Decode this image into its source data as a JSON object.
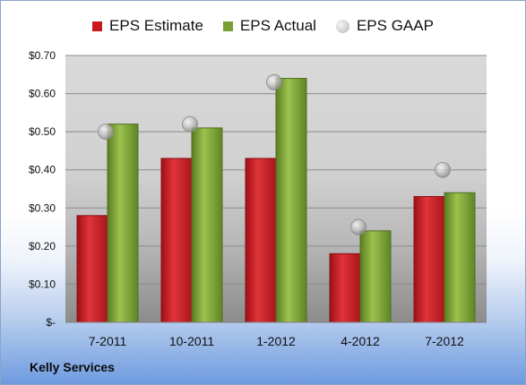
{
  "company_label": "Kelly Services",
  "chart_data": {
    "type": "bar",
    "categories": [
      "7-2011",
      "10-2011",
      "1-2012",
      "4-2012",
      "7-2012"
    ],
    "series": [
      {
        "name": "EPS Estimate",
        "kind": "bar",
        "color": "#c8191f",
        "values": [
          0.28,
          0.43,
          0.43,
          0.18,
          0.33
        ]
      },
      {
        "name": "EPS Actual",
        "kind": "bar",
        "color": "#78a032",
        "values": [
          0.52,
          0.51,
          0.64,
          0.24,
          0.34
        ]
      },
      {
        "name": "EPS GAAP",
        "kind": "marker",
        "color": "#b4b4b4",
        "values": [
          0.5,
          0.52,
          0.63,
          0.25,
          0.4
        ]
      }
    ],
    "yticks": [
      "$-",
      "$0.10",
      "$0.20",
      "$0.30",
      "$0.40",
      "$0.50",
      "$0.60",
      "$0.70"
    ],
    "ylim": [
      0,
      0.7
    ],
    "grid": true,
    "legend_position": "top"
  }
}
